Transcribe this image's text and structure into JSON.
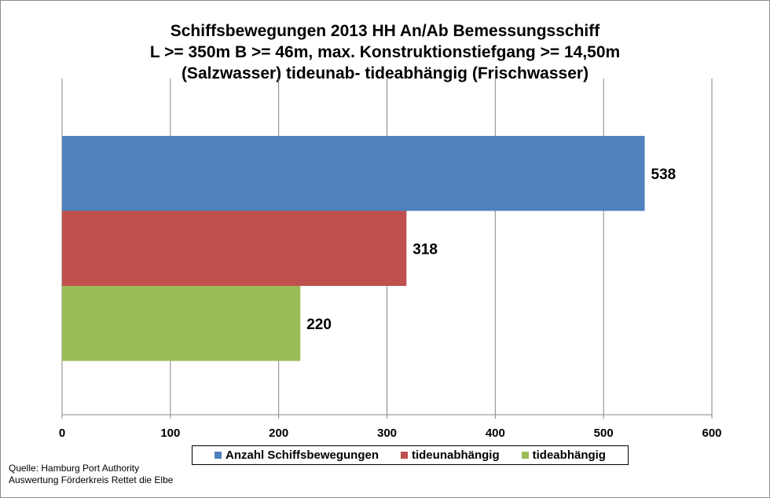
{
  "chart_data": {
    "type": "bar",
    "orientation": "horizontal",
    "title_lines": [
      "Schiffsbewegungen 2013 HH An/Ab  Bemessungsschiff",
      "L >= 350m B >= 46m, max. Konstruktionstiefgang  >= 14,50m",
      "(Salzwasser) tideunab- tideabhängig  (Frischwasser)"
    ],
    "series": [
      {
        "name": "Anzahl Schiffsbewegungen",
        "value": 538,
        "label": "538",
        "color": "#4f81bd"
      },
      {
        "name": "tideunabhängig",
        "value": 318,
        "label": "318",
        "color": "#c0504d"
      },
      {
        "name": "tideabhängig",
        "value": 220,
        "label": "220",
        "color": "#9bbb59"
      }
    ],
    "xlim": [
      0,
      600
    ],
    "xticks": [
      0,
      100,
      200,
      300,
      400,
      500,
      600
    ],
    "xtick_labels": [
      "0",
      "100",
      "200",
      "300",
      "400",
      "500",
      "600"
    ],
    "grid": true,
    "legend_position": "bottom"
  },
  "source": {
    "line1": "Quelle: Hamburg Port Authority",
    "line2": "Auswertung Förderkreis Rettet  die Elbe"
  }
}
